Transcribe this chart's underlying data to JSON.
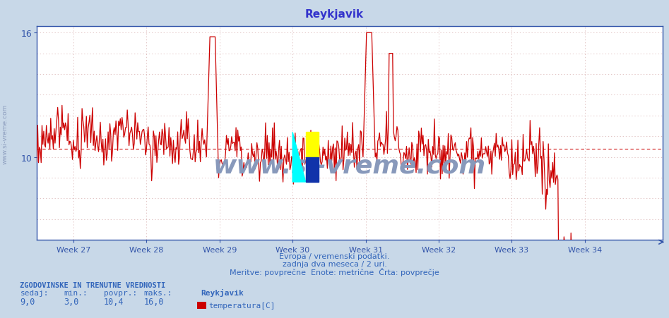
{
  "title": "Reykjavik",
  "title_color": "#3333cc",
  "bg_color": "#c8d8e8",
  "plot_bg_color": "#ffffff",
  "line_color": "#cc0000",
  "avg_line_color": "#cc0000",
  "avg_line_value": 10.4,
  "ymin": 6.0,
  "ymax": 16.0,
  "yticks": [
    10,
    16
  ],
  "axis_color": "#3355aa",
  "grid_color": "#cc9999",
  "week_labels": [
    "Week 27",
    "Week 28",
    "Week 29",
    "Week 30",
    "Week 31",
    "Week 32",
    "Week 33",
    "Week 34"
  ],
  "footer_line1": "Evropa / vremenski podatki.",
  "footer_line2": "zadnja dva meseca / 2 uri.",
  "footer_line3": "Meritve: povprečne  Enote: metrične  Črta: povprečje",
  "footer_color": "#3366bb",
  "stats_header": "ZGODOVINSKE IN TRENUTNE VREDNOSTI",
  "stats_color": "#3366bb",
  "stat_sedaj": "9,0",
  "stat_min": "3,0",
  "stat_povpr": "10,4",
  "stat_maks": "16,0",
  "legend_label": "temperatura[C]",
  "legend_color": "#cc0000",
  "watermark": "www.si-vreme.com",
  "watermark_color": "#8899bb",
  "sidebar_text": "www.si-vreme.com",
  "sidebar_color": "#8899bb",
  "n_points": 720,
  "week_start_indices": [
    42,
    126,
    210,
    294,
    378,
    462,
    546,
    630
  ]
}
